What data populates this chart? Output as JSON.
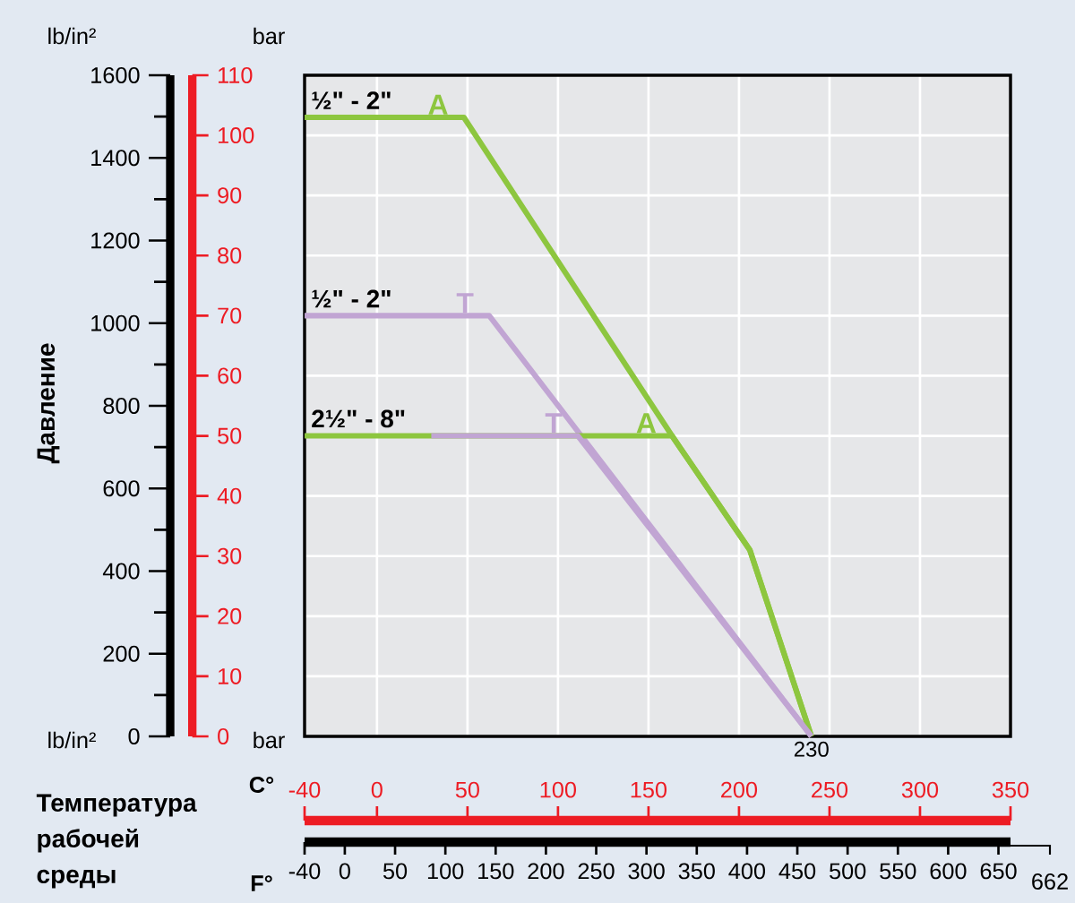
{
  "chart_data": {
    "type": "line",
    "xlabel": "Температура рабочей среды",
    "y2label": "Давление",
    "series": [
      {
        "name": "A",
        "color": "#8dc63f",
        "x": [
          -40,
          48,
          163,
          206,
          240
        ],
        "values": [
          103,
          103,
          50,
          31,
          0
        ]
      },
      {
        "name": "T",
        "color": "#c1a5d3",
        "x": [
          -40,
          62,
          240
        ],
        "values": [
          70,
          70,
          0
        ]
      },
      {
        "name": "A",
        "color": "#8dc63f",
        "x": [
          -40,
          163,
          206,
          240
        ],
        "values": [
          50,
          50,
          31,
          0
        ]
      },
      {
        "name": "T",
        "color": "#c1a5d3",
        "x": [
          30,
          111,
          240
        ],
        "values": [
          50,
          50,
          0
        ]
      }
    ],
    "xlim": [
      -40,
      350
    ],
    "xticks": [
      -40,
      0,
      50,
      100,
      150,
      200,
      250,
      300,
      350
    ],
    "ylim": [
      0,
      110
    ],
    "yticks": [
      0,
      10,
      20,
      30,
      40,
      50,
      60,
      70,
      80,
      90,
      100,
      110
    ],
    "y2lim": [
      0,
      1600
    ],
    "y2ticks": [
      0,
      200,
      400,
      600,
      800,
      1000,
      1200,
      1400,
      1600
    ],
    "x2lim": [
      -40,
      662
    ],
    "x2ticks": [
      -40,
      0,
      50,
      100,
      150,
      200,
      250,
      300,
      350,
      400,
      450,
      500,
      550,
      600,
      650
    ],
    "grid": true,
    "annotations": [
      {
        "text": "½\" - 2\"",
        "y": 103
      },
      {
        "text": "½\" - 2\"",
        "y": 70
      },
      {
        "text": "2½\" - 8\"",
        "y": 50
      },
      {
        "text": "230",
        "x": 240,
        "y": 0
      },
      "lb/in²",
      "bar",
      "lb/in²",
      "bar",
      "C°",
      "F°",
      "662"
    ]
  }
}
